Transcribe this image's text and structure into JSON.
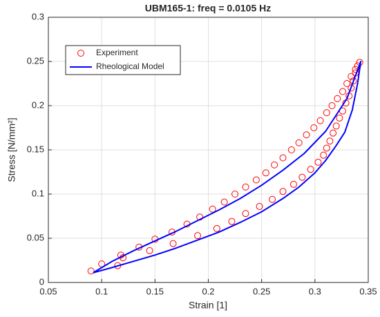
{
  "chart_data": {
    "type": "line",
    "title": "UBM165-1: freq = 0.0105 Hz",
    "xlabel": "Strain [1]",
    "ylabel": "Stress [N/mm²]",
    "xlim": [
      0.05,
      0.35
    ],
    "ylim": [
      0,
      0.3
    ],
    "xticks": [
      0.05,
      0.1,
      0.15,
      0.2,
      0.25,
      0.3,
      0.35
    ],
    "yticks": [
      0,
      0.05,
      0.1,
      0.15,
      0.2,
      0.25,
      0.3
    ],
    "grid": true,
    "legend": "northwest",
    "series": [
      {
        "name": "Experiment",
        "type": "scatter",
        "color": "#ff0000",
        "x": [
          0.09,
          0.1,
          0.118,
          0.135,
          0.15,
          0.166,
          0.18,
          0.192,
          0.204,
          0.215,
          0.225,
          0.235,
          0.245,
          0.254,
          0.262,
          0.27,
          0.278,
          0.285,
          0.292,
          0.299,
          0.305,
          0.311,
          0.316,
          0.321,
          0.326,
          0.33,
          0.334,
          0.338,
          0.342,
          0.34,
          0.338,
          0.336,
          0.334,
          0.332,
          0.329,
          0.326,
          0.323,
          0.32,
          0.317,
          0.314,
          0.311,
          0.308,
          0.303,
          0.296,
          0.288,
          0.28,
          0.27,
          0.26,
          0.248,
          0.235,
          0.222,
          0.208,
          0.19,
          0.167,
          0.145,
          0.12,
          0.115
        ],
        "values": [
          0.013,
          0.021,
          0.031,
          0.04,
          0.049,
          0.057,
          0.066,
          0.074,
          0.083,
          0.091,
          0.1,
          0.108,
          0.116,
          0.124,
          0.133,
          0.141,
          0.15,
          0.158,
          0.167,
          0.175,
          0.183,
          0.192,
          0.2,
          0.208,
          0.216,
          0.225,
          0.233,
          0.241,
          0.249,
          0.245,
          0.237,
          0.228,
          0.22,
          0.211,
          0.203,
          0.194,
          0.186,
          0.177,
          0.169,
          0.16,
          0.152,
          0.144,
          0.136,
          0.128,
          0.119,
          0.111,
          0.103,
          0.094,
          0.086,
          0.078,
          0.069,
          0.061,
          0.053,
          0.044,
          0.036,
          0.028,
          0.019
        ]
      },
      {
        "name": "Rheological Model",
        "type": "line",
        "color": "#0000ff",
        "x": [
          0.092,
          0.11,
          0.13,
          0.15,
          0.17,
          0.19,
          0.21,
          0.23,
          0.25,
          0.27,
          0.29,
          0.31,
          0.33,
          0.343,
          0.34,
          0.335,
          0.328,
          0.32,
          0.31,
          0.3,
          0.285,
          0.27,
          0.25,
          0.23,
          0.21,
          0.19,
          0.17,
          0.15,
          0.13,
          0.11,
          0.092
        ],
        "values": [
          0.011,
          0.024,
          0.036,
          0.047,
          0.058,
          0.07,
          0.082,
          0.095,
          0.11,
          0.127,
          0.146,
          0.171,
          0.208,
          0.25,
          0.225,
          0.195,
          0.17,
          0.155,
          0.138,
          0.124,
          0.108,
          0.095,
          0.08,
          0.068,
          0.057,
          0.048,
          0.039,
          0.031,
          0.024,
          0.017,
          0.011
        ]
      }
    ]
  }
}
